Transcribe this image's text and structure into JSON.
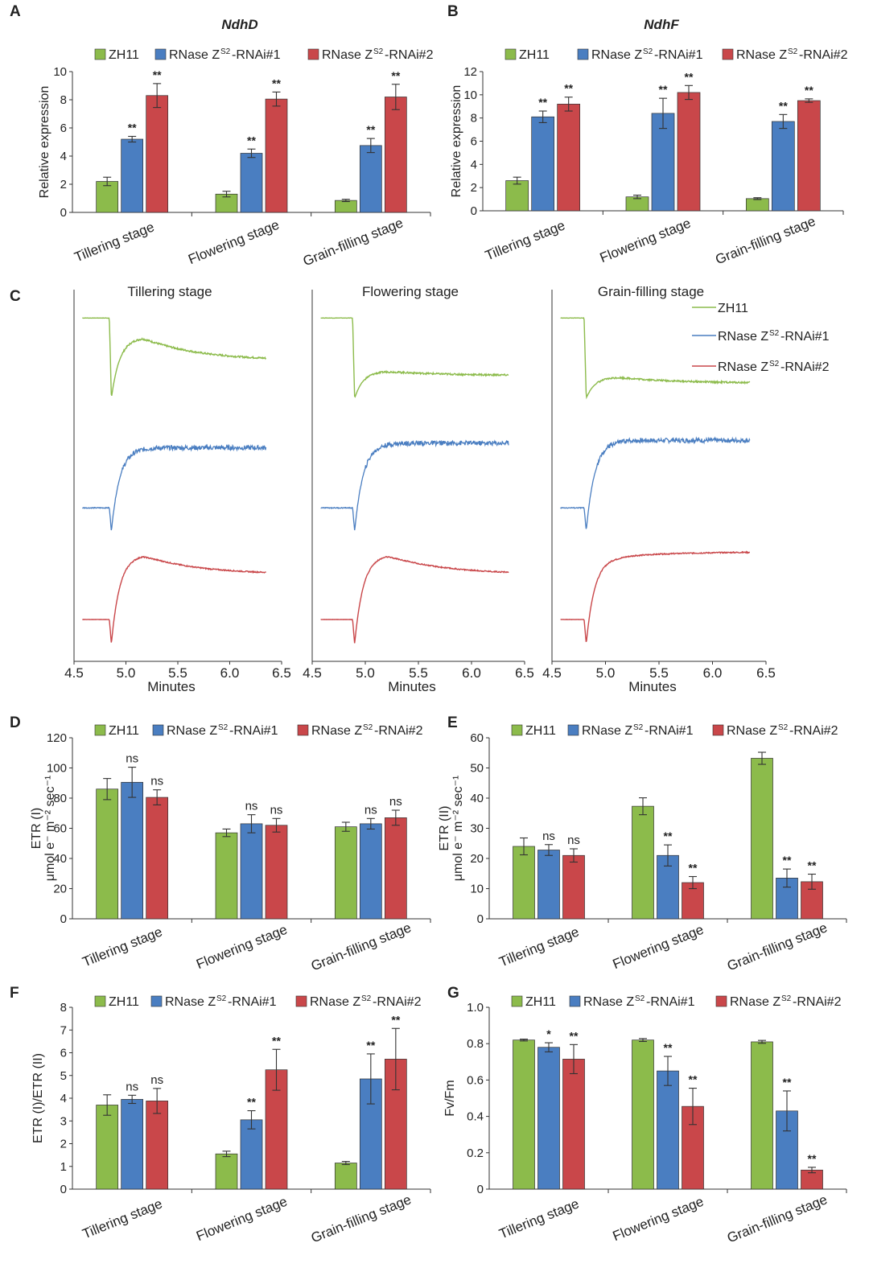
{
  "figure": {
    "colors": {
      "zh11": "#8cbb4b",
      "rnai1": "#4a7ec1",
      "rnai2": "#c9474a",
      "axis": "#333333"
    }
  },
  "chart_data": [
    {
      "id": "A",
      "letter": "A",
      "type": "bar",
      "title": "NdhD",
      "categories": [
        "Tillering stage",
        "Flowering stage",
        "Grain-filling stage"
      ],
      "ylabel": "Relative expression",
      "ylim": [
        0,
        10
      ],
      "yticks": [
        0,
        2,
        4,
        6,
        8,
        10
      ],
      "legend": [
        "ZH11",
        "RNase Z",
        "-RNAi#1",
        "RNase Z",
        "-RNAi#2"
      ],
      "legend_sup": "S2",
      "series": [
        {
          "name": "ZH11",
          "values": [
            2.2,
            1.3,
            0.85
          ],
          "errors": [
            0.3,
            0.2,
            0.08
          ],
          "sig": [
            "",
            "",
            ""
          ]
        },
        {
          "name": "RNase ZS2-RNAi#1",
          "values": [
            5.2,
            4.2,
            4.75
          ],
          "errors": [
            0.2,
            0.3,
            0.5
          ],
          "sig": [
            "**",
            "**",
            "**"
          ]
        },
        {
          "name": "RNase ZS2-RNAi#2",
          "values": [
            8.3,
            8.05,
            8.2
          ],
          "errors": [
            0.85,
            0.5,
            0.9
          ],
          "sig": [
            "**",
            "**",
            "**"
          ]
        }
      ]
    },
    {
      "id": "B",
      "letter": "B",
      "type": "bar",
      "title": "NdhF",
      "categories": [
        "Tillering stage",
        "Flowering stage",
        "Grain-filling stage"
      ],
      "ylabel": "Relative expression",
      "ylim": [
        0,
        12
      ],
      "yticks": [
        0,
        2,
        4,
        6,
        8,
        10,
        12
      ],
      "legend": [
        "ZH11",
        "RNase Z",
        "-RNAi#1",
        "RNase Z",
        "-RNAi#2"
      ],
      "legend_sup": "S2",
      "series": [
        {
          "name": "ZH11",
          "values": [
            2.6,
            1.2,
            1.05
          ],
          "errors": [
            0.3,
            0.15,
            0.08
          ],
          "sig": [
            "",
            "",
            ""
          ]
        },
        {
          "name": "RNase ZS2-RNAi#1",
          "values": [
            8.1,
            8.4,
            7.7
          ],
          "errors": [
            0.5,
            1.3,
            0.6
          ],
          "sig": [
            "**",
            "**",
            "**"
          ]
        },
        {
          "name": "RNase ZS2-RNAi#2",
          "values": [
            9.2,
            10.2,
            9.5
          ],
          "errors": [
            0.6,
            0.6,
            0.15
          ],
          "sig": [
            "**",
            "**",
            "**"
          ]
        }
      ]
    },
    {
      "id": "C",
      "letter": "C",
      "type": "line",
      "panel_titles": [
        "Tillering stage",
        "Flowering stage",
        "Grain-filling stage"
      ],
      "xlabel": "Minutes",
      "xlim": [
        4.5,
        6.5
      ],
      "xticks": [
        "4.5",
        "5.0",
        "5.5",
        "6.0",
        "6.5"
      ],
      "legend": [
        "ZH11",
        "RNase Z",
        "-RNAi#1",
        "RNase Z",
        "-RNAi#2"
      ],
      "legend_sup": "S2",
      "traces": [
        {
          "name": "ZH11",
          "level": [
            0.4,
            0.65,
            0.62
          ],
          "pre": 0.62,
          "dip": 0.0,
          "peak": [
            0.72,
            0.32,
            0.25
          ],
          "end": [
            0.45,
            0.27,
            0.18
          ],
          "noise": 0.02
        },
        {
          "name": "RNase ZS2-RNAi#1",
          "level": [
            0.3,
            0.45,
            0.45
          ],
          "pre": 0.25,
          "dip": 0.0,
          "peak": [
            0.9,
            0.95,
            0.98
          ],
          "end": [
            0.9,
            0.95,
            0.98
          ],
          "noise": 0.05
        },
        {
          "name": "RNase ZS2-RNAi#2",
          "level": [
            0.18,
            0.18,
            0.18
          ],
          "pre": 0.25,
          "dip": 0.0,
          "peak": [
            0.92,
            0.92,
            0.9
          ],
          "end": [
            0.72,
            0.72,
            0.95
          ],
          "noise": 0.012
        }
      ]
    },
    {
      "id": "D",
      "letter": "D",
      "type": "bar",
      "categories": [
        "Tillering stage",
        "Flowering stage",
        "Grain-filling stage"
      ],
      "ylabel": "ETR (I)",
      "ylabel2": "μmol e⁻ m⁻² sec⁻¹",
      "ylim": [
        0,
        120
      ],
      "yticks": [
        0,
        20,
        40,
        60,
        80,
        100,
        120
      ],
      "legend": [
        "ZH11",
        "RNase Z",
        "-RNAi#1",
        "RNase Z",
        "-RNAi#2"
      ],
      "legend_sup": "S2",
      "series": [
        {
          "name": "ZH11",
          "values": [
            86,
            57,
            61
          ],
          "errors": [
            7,
            2.5,
            3
          ],
          "sig": [
            "",
            "",
            ""
          ]
        },
        {
          "name": "RNase ZS2-RNAi#1",
          "values": [
            90.5,
            63,
            63
          ],
          "errors": [
            10,
            6,
            3.5
          ],
          "sig": [
            "ns",
            "ns",
            "ns"
          ]
        },
        {
          "name": "RNase ZS2-RNAi#2",
          "values": [
            80.5,
            62,
            67
          ],
          "errors": [
            5,
            4.5,
            5
          ],
          "sig": [
            "ns",
            "ns",
            "ns"
          ]
        }
      ]
    },
    {
      "id": "E",
      "letter": "E",
      "type": "bar",
      "categories": [
        "Tillering stage",
        "Flowering stage",
        "Grain-filling stage"
      ],
      "ylabel": "ETR (II)",
      "ylabel2": "μmol e⁻ m⁻² sec⁻¹",
      "ylim": [
        0,
        60
      ],
      "yticks": [
        0,
        10,
        20,
        30,
        40,
        50,
        60
      ],
      "legend": [
        "ZH11",
        "RNase Z",
        "-RNAi#1",
        "RNase Z",
        "-RNAi#2"
      ],
      "legend_sup": "S2",
      "series": [
        {
          "name": "ZH11",
          "values": [
            24,
            37.3,
            53.2
          ],
          "errors": [
            2.8,
            2.8,
            2.0
          ],
          "sig": [
            "",
            "",
            ""
          ]
        },
        {
          "name": "RNase ZS2-RNAi#1",
          "values": [
            22.8,
            21,
            13.5
          ],
          "errors": [
            1.8,
            3.5,
            3.0
          ],
          "sig": [
            "ns",
            "**",
            "**"
          ]
        },
        {
          "name": "RNase ZS2-RNAi#2",
          "values": [
            21,
            12,
            12.3
          ],
          "errors": [
            2.2,
            2.0,
            2.5
          ],
          "sig": [
            "ns",
            "**",
            "**"
          ]
        }
      ]
    },
    {
      "id": "F",
      "letter": "F",
      "type": "bar",
      "categories": [
        "Tillering stage",
        "Flowering stage",
        "Grain-filling stage"
      ],
      "ylabel": "ETR (I)/ETR (II)",
      "ylim": [
        0,
        8
      ],
      "yticks": [
        0,
        1,
        2,
        3,
        4,
        5,
        6,
        7,
        8
      ],
      "legend": [
        "ZH11",
        "RNase Z",
        "-RNAi#1",
        "RNase Z",
        "-RNAi#2"
      ],
      "legend_sup": "S2",
      "series": [
        {
          "name": "ZH11",
          "values": [
            3.7,
            1.55,
            1.15
          ],
          "errors": [
            0.45,
            0.12,
            0.07
          ],
          "sig": [
            "",
            "",
            ""
          ]
        },
        {
          "name": "RNase ZS2-RNAi#1",
          "values": [
            3.95,
            3.05,
            4.85
          ],
          "errors": [
            0.18,
            0.4,
            1.1
          ],
          "sig": [
            "ns",
            "**",
            "**"
          ]
        },
        {
          "name": "RNase ZS2-RNAi#2",
          "values": [
            3.88,
            5.25,
            5.72
          ],
          "errors": [
            0.55,
            0.9,
            1.35
          ],
          "sig": [
            "ns",
            "**",
            "**"
          ]
        }
      ]
    },
    {
      "id": "G",
      "letter": "G",
      "type": "bar",
      "categories": [
        "Tillering stage",
        "Flowering stage",
        "Grain-filling stage"
      ],
      "ylabel": "Fv/Fm",
      "ylim": [
        0,
        1.0
      ],
      "yticks": [
        "0",
        "0.2",
        "0.4",
        "0.6",
        "0.8",
        "1.0"
      ],
      "legend": [
        "ZH11",
        "RNase Z",
        "-RNAi#1",
        "RNase Z",
        "-RNAi#2"
      ],
      "legend_sup": "S2",
      "series": [
        {
          "name": "ZH11",
          "values": [
            0.82,
            0.82,
            0.81
          ],
          "errors": [
            0.005,
            0.008,
            0.008
          ],
          "sig": [
            "",
            "",
            ""
          ]
        },
        {
          "name": "RNase ZS2-RNAi#1",
          "values": [
            0.78,
            0.65,
            0.43
          ],
          "errors": [
            0.025,
            0.08,
            0.11
          ],
          "sig": [
            "*",
            "**",
            "**"
          ]
        },
        {
          "name": "RNase ZS2-RNAi#2",
          "values": [
            0.715,
            0.455,
            0.105
          ],
          "errors": [
            0.08,
            0.1,
            0.015
          ],
          "sig": [
            "**",
            "**",
            "**"
          ]
        }
      ]
    }
  ]
}
